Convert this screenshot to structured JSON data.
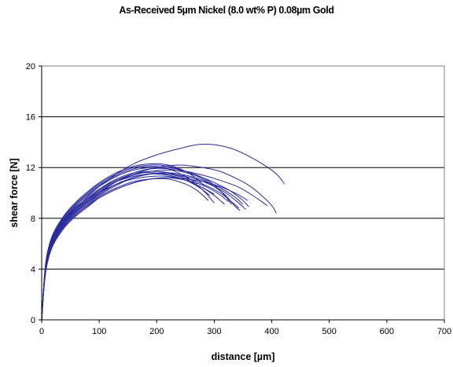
{
  "chart_data": {
    "type": "line",
    "title": "As-Received 5µm  Nickel (8.0 wt% P) 0.08µm Gold",
    "xlabel": "distance [µm]",
    "ylabel": "shear force [N]",
    "xlim": [
      0,
      700
    ],
    "ylim": [
      0,
      20
    ],
    "xticks": [
      0,
      100,
      200,
      300,
      400,
      500,
      600,
      700
    ],
    "yticks": [
      0,
      4,
      8,
      12,
      16,
      20
    ],
    "grid": "horizontal major gridlines",
    "legend": "none",
    "line_color": "#2b2b9e",
    "series": [
      {
        "x": [
          0,
          5,
          10,
          20,
          40,
          60,
          80,
          100,
          130,
          160,
          200,
          240,
          270,
          300,
          330,
          360,
          390,
          410,
          422
        ],
        "y": [
          0,
          3.3,
          4.9,
          6.3,
          7.8,
          8.8,
          9.7,
          10.5,
          11.5,
          12.3,
          13.0,
          13.5,
          13.8,
          13.8,
          13.5,
          12.9,
          12.1,
          11.4,
          10.7
        ]
      },
      {
        "x": [
          0,
          5,
          10,
          20,
          40,
          60,
          80,
          100,
          130,
          160,
          200,
          240,
          280,
          310,
          340,
          360,
          380,
          400,
          408
        ],
        "y": [
          0,
          3.2,
          4.8,
          6.2,
          7.6,
          8.5,
          9.3,
          10.0,
          10.9,
          11.5,
          12.0,
          12.2,
          12.0,
          11.7,
          11.1,
          10.6,
          9.9,
          9.0,
          8.4
        ]
      },
      {
        "x": [
          0,
          5,
          10,
          20,
          40,
          60,
          80,
          100,
          130,
          160,
          190,
          220,
          250,
          280,
          310,
          330,
          350,
          360
        ],
        "y": [
          0,
          3.4,
          5.0,
          6.4,
          7.9,
          8.9,
          9.6,
          10.3,
          11.1,
          11.6,
          11.9,
          11.9,
          11.6,
          11.2,
          10.6,
          10.1,
          9.4,
          8.9
        ]
      },
      {
        "x": [
          0,
          5,
          10,
          20,
          40,
          60,
          80,
          100,
          130,
          160,
          190,
          220,
          250,
          280,
          300,
          320,
          335,
          345
        ],
        "y": [
          0,
          3.6,
          5.3,
          6.7,
          8.2,
          9.2,
          10.0,
          10.7,
          11.5,
          12.0,
          12.2,
          12.1,
          11.7,
          11.1,
          10.5,
          9.8,
          9.0,
          8.6
        ]
      },
      {
        "x": [
          0,
          5,
          10,
          20,
          40,
          60,
          80,
          100,
          130,
          160,
          190,
          220,
          250,
          270,
          290
        ],
        "y": [
          0,
          3.1,
          4.6,
          6.0,
          7.4,
          8.3,
          9.0,
          9.7,
          10.4,
          10.9,
          11.1,
          11.1,
          10.7,
          10.2,
          9.4
        ]
      },
      {
        "x": [
          0,
          5,
          10,
          20,
          40,
          60,
          80,
          100,
          130,
          160,
          190,
          220,
          250,
          280,
          300,
          320,
          340,
          355
        ],
        "y": [
          0,
          3.3,
          4.9,
          6.3,
          7.7,
          8.6,
          9.3,
          9.9,
          10.7,
          11.2,
          11.5,
          11.5,
          11.3,
          10.9,
          10.5,
          10.0,
          9.3,
          8.7
        ]
      },
      {
        "x": [
          0,
          5,
          10,
          20,
          40,
          60,
          80,
          100,
          130,
          160,
          190,
          220,
          250,
          280,
          300,
          320,
          330
        ],
        "y": [
          0,
          3.5,
          5.1,
          6.5,
          8.0,
          9.0,
          9.8,
          10.5,
          11.3,
          11.8,
          12.0,
          12.0,
          11.7,
          11.2,
          10.6,
          9.7,
          9.1
        ]
      },
      {
        "x": [
          0,
          5,
          10,
          20,
          40,
          60,
          80,
          100,
          130,
          160,
          190,
          220,
          250,
          270,
          285,
          300
        ],
        "y": [
          0,
          3.2,
          4.7,
          6.1,
          7.5,
          8.4,
          9.1,
          9.8,
          10.6,
          11.2,
          11.5,
          11.5,
          11.1,
          10.6,
          10.0,
          9.2
        ]
      },
      {
        "x": [
          0,
          5,
          10,
          20,
          40,
          60,
          80,
          100,
          130,
          160,
          190,
          220,
          250,
          280,
          310,
          340,
          360,
          380,
          392
        ],
        "y": [
          0,
          3.4,
          5.0,
          6.4,
          7.9,
          8.8,
          9.5,
          10.1,
          10.9,
          11.4,
          11.7,
          11.8,
          11.7,
          11.4,
          11.0,
          10.5,
          10.0,
          9.4,
          9.0
        ]
      },
      {
        "x": [
          0,
          5,
          10,
          20,
          40,
          60,
          80,
          100,
          130,
          160,
          190,
          220,
          250,
          280,
          310,
          340,
          358
        ],
        "y": [
          0,
          3.0,
          4.5,
          5.9,
          7.3,
          8.2,
          8.9,
          9.6,
          10.3,
          10.8,
          11.1,
          11.2,
          11.1,
          10.9,
          10.5,
          9.9,
          9.4
        ]
      },
      {
        "x": [
          0,
          5,
          10,
          20,
          40,
          60,
          80,
          100,
          130,
          160,
          190,
          220,
          250,
          280,
          300,
          318
        ],
        "y": [
          0,
          3.3,
          4.9,
          6.3,
          7.7,
          8.7,
          9.4,
          10.1,
          10.9,
          11.3,
          11.5,
          11.4,
          11.0,
          10.4,
          9.8,
          9.1
        ]
      },
      {
        "x": [
          0,
          5,
          10,
          20,
          40,
          60,
          80,
          100,
          130,
          160,
          190,
          220,
          250,
          275,
          292
        ],
        "y": [
          0,
          3.4,
          5.0,
          6.4,
          7.8,
          8.7,
          9.5,
          10.2,
          11.0,
          11.5,
          11.6,
          11.4,
          11.0,
          10.4,
          9.8
        ]
      },
      {
        "x": [
          0,
          5,
          10,
          20,
          40,
          60,
          80,
          100,
          130,
          160,
          190,
          220,
          250,
          280,
          305,
          325
        ],
        "y": [
          0,
          3.1,
          4.6,
          6.0,
          7.4,
          8.3,
          9.0,
          9.6,
          10.3,
          10.8,
          11.1,
          11.2,
          11.0,
          10.6,
          10.0,
          9.3
        ]
      },
      {
        "x": [
          0,
          5,
          10,
          20,
          40,
          60,
          80,
          100,
          130,
          160,
          190,
          220,
          250,
          270
        ],
        "y": [
          0,
          3.5,
          5.2,
          6.6,
          8.1,
          9.1,
          9.9,
          10.6,
          11.4,
          11.9,
          12.1,
          11.9,
          11.3,
          10.7
        ]
      },
      {
        "x": [
          0,
          5,
          10,
          20,
          40,
          60,
          80,
          100,
          130,
          160,
          190,
          220,
          250,
          280,
          310,
          335,
          350
        ],
        "y": [
          0,
          3.2,
          4.8,
          6.2,
          7.6,
          8.5,
          9.2,
          9.9,
          10.7,
          11.2,
          11.5,
          11.6,
          11.4,
          11.0,
          10.4,
          9.7,
          9.1
        ]
      },
      {
        "x": [
          0,
          5,
          10,
          20,
          40,
          60,
          80,
          100,
          130,
          160,
          190,
          220,
          250,
          280,
          300
        ],
        "y": [
          0,
          3.3,
          4.9,
          6.3,
          7.7,
          8.6,
          9.3,
          10.0,
          10.7,
          11.1,
          11.3,
          11.3,
          11.0,
          10.4,
          9.9
        ]
      },
      {
        "x": [
          0,
          5,
          10,
          20,
          40,
          60,
          80,
          100,
          130,
          160,
          190,
          220,
          250,
          280,
          310,
          330,
          343
        ],
        "y": [
          0,
          3.4,
          5.0,
          6.5,
          8.0,
          8.9,
          9.6,
          10.3,
          11.0,
          11.5,
          11.7,
          11.6,
          11.2,
          10.7,
          10.0,
          9.3,
          8.8
        ]
      },
      {
        "x": [
          0,
          5,
          10,
          20,
          40,
          60,
          80,
          100,
          130,
          160,
          190,
          220,
          250,
          270,
          283
        ],
        "y": [
          0,
          3.6,
          5.3,
          6.8,
          8.3,
          9.3,
          10.1,
          10.8,
          11.6,
          12.1,
          12.3,
          12.2,
          11.7,
          11.1,
          10.5
        ]
      }
    ]
  }
}
